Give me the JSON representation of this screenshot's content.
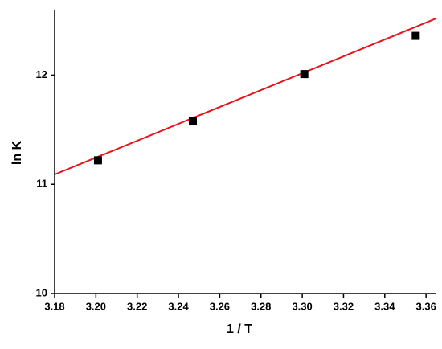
{
  "chart_data": {
    "type": "scatter",
    "x_label": "1 / T",
    "y_label": "ln K",
    "points": {
      "x": [
        3.201,
        3.247,
        3.301,
        3.355
      ],
      "y": [
        11.22,
        11.58,
        12.01,
        12.36
      ],
      "color": "#000000"
    },
    "fit": {
      "x": [
        3.18,
        3.365
      ],
      "y": [
        11.09,
        12.52
      ],
      "color": "#e8141c"
    },
    "xlim": [
      3.18,
      3.365
    ],
    "ylim": [
      10,
      12.6
    ],
    "xticks": [
      3.18,
      {
        "value": 3.2,
        "label": "3.20"
      },
      3.22,
      3.24,
      3.26,
      3.28,
      {
        "value": 3.3,
        "label": "3.30"
      },
      3.32,
      3.34,
      3.36
    ],
    "yticks": [
      10,
      11,
      12
    ]
  }
}
